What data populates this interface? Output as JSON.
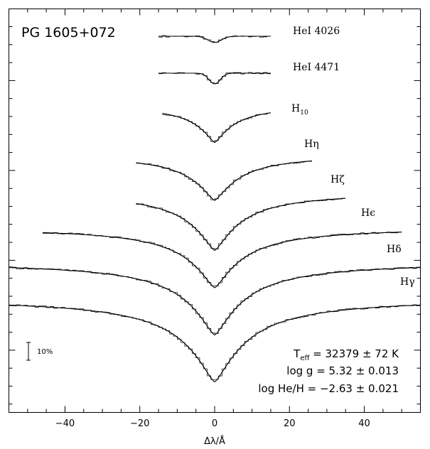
{
  "chart_data": {
    "type": "line",
    "title": "PG 1605+072",
    "xlabel": "Δλ/Å",
    "xlim": [
      -55,
      55
    ],
    "x_ticks": [
      -40,
      -20,
      0,
      20,
      40
    ],
    "x_tick_labels": [
      "−40",
      "−20",
      "0",
      "20",
      "40"
    ],
    "scale_bar_label": "10%",
    "fit_parameters": [
      {
        "name": "T",
        "sub": "eff",
        "value": " = 32379 ± 72 K"
      },
      {
        "name": "log g",
        "sub": "",
        "value": " = 5.32 ± 0.013"
      },
      {
        "name": "log He/H",
        "sub": "",
        "value": " = −2.63 ± 0.021"
      }
    ],
    "series": [
      {
        "label": "HeI 4026",
        "main": "HeI",
        "sub": "",
        "suffix": " 4026",
        "xrange": [
          -15,
          15
        ],
        "depth": 0.035,
        "width": 1.8,
        "shape": "g"
      },
      {
        "label": "HeI 4471",
        "main": "HeI",
        "sub": "",
        "suffix": " 4471",
        "xrange": [
          -15,
          15
        ],
        "depth": 0.06,
        "width": 1.5,
        "shape": "g"
      },
      {
        "label": "H10",
        "main": "H",
        "sub": "10",
        "suffix": "",
        "xrange": [
          -14,
          15
        ],
        "depth": 0.21,
        "width": 5.5,
        "shape": "l"
      },
      {
        "label": "Hη",
        "main": "Hη",
        "sub": "",
        "suffix": "",
        "xrange": [
          -21,
          26
        ],
        "depth": 0.26,
        "width": 7,
        "shape": "l"
      },
      {
        "label": "Hζ",
        "main": "Hζ",
        "sub": "",
        "suffix": "",
        "xrange": [
          -21,
          35
        ],
        "depth": 0.33,
        "width": 7.5,
        "shape": "l"
      },
      {
        "label": "Hϵ",
        "main": "Hϵ",
        "sub": "",
        "suffix": "",
        "xrange": [
          -46,
          50
        ],
        "depth": 0.34,
        "width": 8,
        "shape": "l"
      },
      {
        "label": "Hδ",
        "main": "Hδ",
        "sub": "",
        "suffix": "",
        "xrange": [
          -55,
          55
        ],
        "depth": 0.41,
        "width": 8.5,
        "shape": "l"
      },
      {
        "label": "Hγ",
        "main": "Hγ",
        "sub": "",
        "suffix": "",
        "xrange": [
          -55,
          55
        ],
        "depth": 0.47,
        "width": 9,
        "shape": "l"
      }
    ]
  }
}
